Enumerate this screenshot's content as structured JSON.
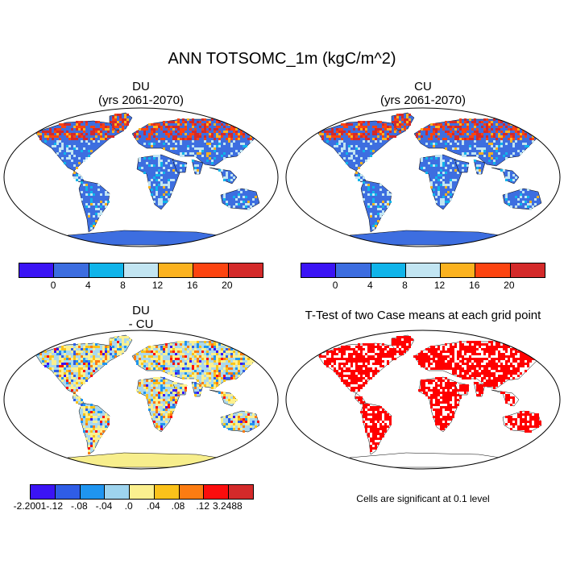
{
  "title": "ANN TOTSOMC_1m (kgC/m^2)",
  "panels": {
    "du": {
      "name": "DU",
      "years": "(yrs 2061-2070)"
    },
    "cu": {
      "name": "CU",
      "years": "(yrs 2061-2070)"
    },
    "diff": {
      "line1": "DU",
      "line2": "- CU"
    },
    "ttest": {
      "title": "T-Test of two Case means at each grid point"
    }
  },
  "colorbar_top": {
    "colors": [
      "#3b14f5",
      "#3c6de0",
      "#10b4ea",
      "#c2e5f2",
      "#fbb21f",
      "#fc4410",
      "#d42a2a"
    ],
    "labels": [
      "0",
      "4",
      "8",
      "12",
      "16",
      "20"
    ]
  },
  "colorbar_diff": {
    "colors": [
      "#3b14f5",
      "#2f5de6",
      "#1f95f0",
      "#9ed4ee",
      "#fbf08f",
      "#fbc21a",
      "#fc7c12",
      "#fc0d0d",
      "#d42a2a"
    ],
    "labels": [
      "-2.2001",
      "-.12",
      "-.08",
      "-.04",
      ".0",
      ".04",
      ".08",
      ".12",
      "3.2488"
    ]
  },
  "significance_note": "Cells are significant at 0.1 level",
  "colors": {
    "ocean": "#ffffff",
    "land_mean": "#3d6ee0",
    "land_diff": "#a9d8ee",
    "antarctica_diff": "#f7ee8c",
    "significant": "#ff0000"
  }
}
